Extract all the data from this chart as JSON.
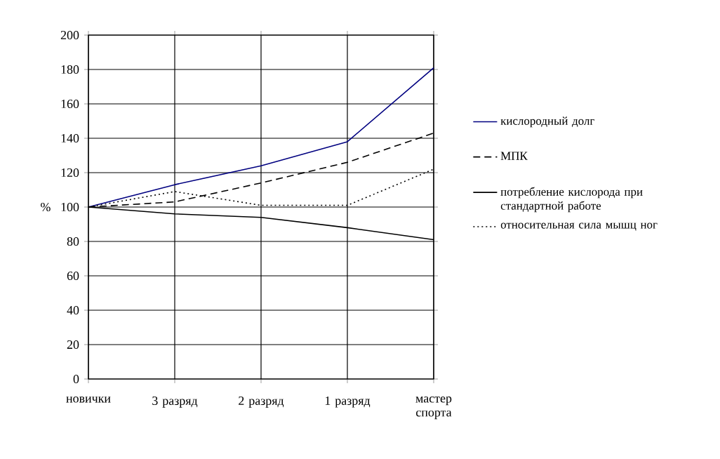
{
  "chart_data": {
    "type": "line",
    "ylabel": "%",
    "categories": [
      "новички",
      "3 разряд",
      "2 разряд",
      "1 разряд",
      "мастер спорта"
    ],
    "ylim": [
      0,
      200
    ],
    "yticks": [
      0,
      20,
      40,
      60,
      80,
      100,
      120,
      140,
      160,
      180,
      200
    ],
    "grid": true,
    "legend": "right",
    "marker": "none",
    "series": [
      {
        "name": "кислородный долг",
        "color": "#000080",
        "line_style": "solid",
        "values": [
          100,
          113,
          124,
          138,
          181
        ]
      },
      {
        "name": "МПК",
        "color": "#000000",
        "line_style": "dashed",
        "values": [
          100,
          103,
          114,
          126,
          143
        ]
      },
      {
        "name": "потребление кислорода при стандартной работе",
        "color": "#000000",
        "line_style": "solid",
        "values": [
          100,
          96,
          94,
          88,
          81
        ]
      },
      {
        "name": "относительная сила мышц ног",
        "color": "#000000",
        "line_style": "dotted",
        "values": [
          100,
          109,
          101,
          101,
          122
        ]
      }
    ]
  }
}
